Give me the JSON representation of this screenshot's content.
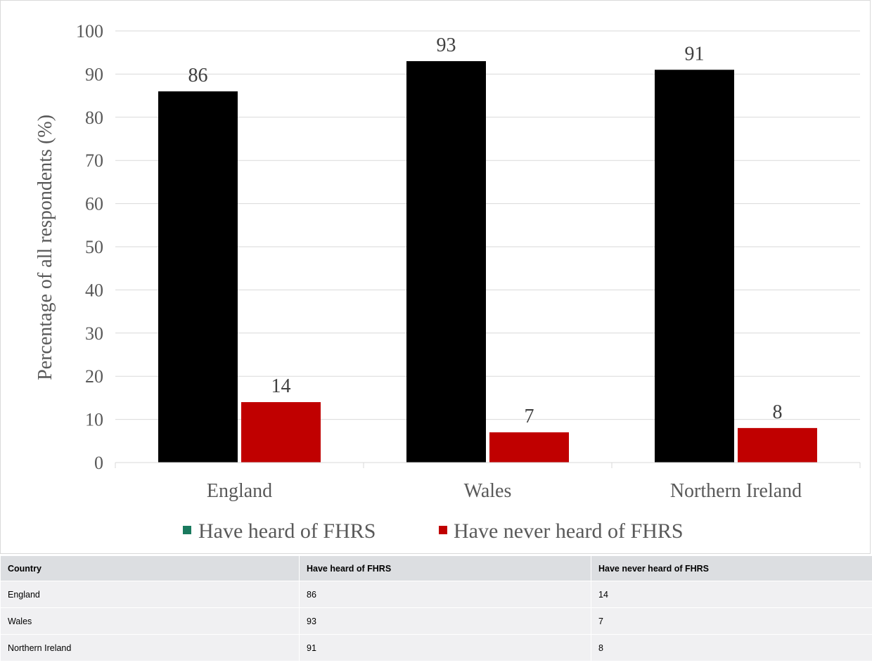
{
  "chart_data": {
    "type": "bar",
    "categories": [
      "England",
      "Wales",
      "Northern Ireland"
    ],
    "series": [
      {
        "name": "Have heard of FHRS",
        "values": [
          86,
          93,
          91
        ],
        "color": "#000000",
        "legend_color": "#1a7a5e"
      },
      {
        "name": "Have never heard of FHRS",
        "values": [
          14,
          7,
          8
        ],
        "color": "#c00000",
        "legend_color": "#c00000"
      }
    ],
    "data_labels": [
      [
        "86",
        "93",
        "91"
      ],
      [
        "14",
        "7",
        "8"
      ]
    ],
    "ylabel": "Percentage of all respondents (%)",
    "xlabel": "",
    "ylim": [
      0,
      100
    ],
    "yticks": [
      0,
      10,
      20,
      30,
      40,
      50,
      60,
      70,
      80,
      90,
      100
    ],
    "grid": true,
    "legend_position": "bottom"
  },
  "table": {
    "headers": [
      "Country",
      "Have heard of FHRS",
      "Have never heard of FHRS"
    ],
    "rows": [
      [
        "England",
        "86",
        "14"
      ],
      [
        "Wales",
        "93",
        "7"
      ],
      [
        "Northern Ireland",
        "91",
        "8"
      ]
    ]
  }
}
